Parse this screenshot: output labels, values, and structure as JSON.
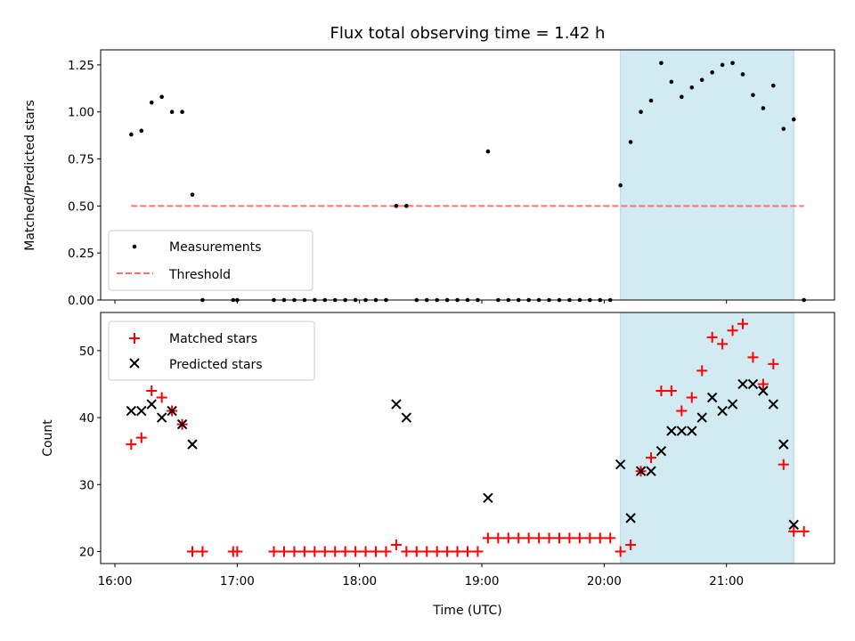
{
  "colors": {
    "measure": "#000000",
    "threshold": "#ff7070",
    "matched": "#ff0000",
    "predicted": "#000000",
    "shade": "#add8e6"
  },
  "chart_data": [
    {
      "type": "scatter",
      "title": "Flux total observing time = 1.42 h",
      "xlabel": "",
      "ylabel": "Matched/Predicted stars",
      "xlim": [
        "15:53",
        "21:53"
      ],
      "ylim": [
        0,
        1.33
      ],
      "yticks": [
        0,
        0.25,
        0.5,
        0.75,
        1.0,
        1.25
      ],
      "ytick_labels": [
        "0.00",
        "0.25",
        "0.50",
        "0.75",
        "1.00",
        "1.25"
      ],
      "shaded_span": [
        "20:08",
        "21:33"
      ],
      "legend": [
        "Measurements",
        "Threshold"
      ],
      "legend_position": "lower-left",
      "threshold": {
        "name": "Threshold",
        "y": 0.5,
        "x": [
          "16:08",
          "21:38"
        ]
      },
      "series": [
        {
          "name": "Measurements",
          "points": [
            [
              "16:08",
              0.88
            ],
            [
              "16:13",
              0.9
            ],
            [
              "16:18",
              1.05
            ],
            [
              "16:23",
              1.08
            ],
            [
              "16:28",
              1.0
            ],
            [
              "16:33",
              1.0
            ],
            [
              "16:38",
              0.56
            ],
            [
              "16:43",
              0.0
            ],
            [
              "16:58",
              0.0
            ],
            [
              "17:00",
              0.0
            ],
            [
              "17:18",
              0.0
            ],
            [
              "17:23",
              0.0
            ],
            [
              "17:28",
              0.0
            ],
            [
              "17:33",
              0.0
            ],
            [
              "17:38",
              0.0
            ],
            [
              "17:43",
              0.0
            ],
            [
              "17:48",
              0.0
            ],
            [
              "17:53",
              0.0
            ],
            [
              "17:58",
              0.0
            ],
            [
              "18:03",
              0.0
            ],
            [
              "18:08",
              0.0
            ],
            [
              "18:13",
              0.0
            ],
            [
              "18:18",
              0.5
            ],
            [
              "18:23",
              0.5
            ],
            [
              "18:28",
              0.0
            ],
            [
              "18:33",
              0.0
            ],
            [
              "18:38",
              0.0
            ],
            [
              "18:43",
              0.0
            ],
            [
              "18:48",
              0.0
            ],
            [
              "18:53",
              0.0
            ],
            [
              "18:58",
              0.0
            ],
            [
              "19:03",
              0.79
            ],
            [
              "19:08",
              0.0
            ],
            [
              "19:13",
              0.0
            ],
            [
              "19:18",
              0.0
            ],
            [
              "19:23",
              0.0
            ],
            [
              "19:28",
              0.0
            ],
            [
              "19:33",
              0.0
            ],
            [
              "19:38",
              0.0
            ],
            [
              "19:43",
              0.0
            ],
            [
              "19:48",
              0.0
            ],
            [
              "19:53",
              0.0
            ],
            [
              "19:58",
              0.0
            ],
            [
              "20:03",
              0.0
            ],
            [
              "20:08",
              0.61
            ],
            [
              "20:13",
              0.84
            ],
            [
              "20:18",
              1.0
            ],
            [
              "20:23",
              1.06
            ],
            [
              "20:28",
              1.26
            ],
            [
              "20:33",
              1.16
            ],
            [
              "20:38",
              1.08
            ],
            [
              "20:43",
              1.13
            ],
            [
              "20:48",
              1.17
            ],
            [
              "20:53",
              1.21
            ],
            [
              "20:58",
              1.25
            ],
            [
              "21:03",
              1.26
            ],
            [
              "21:08",
              1.2
            ],
            [
              "21:13",
              1.09
            ],
            [
              "21:18",
              1.02
            ],
            [
              "21:23",
              1.14
            ],
            [
              "21:28",
              0.91
            ],
            [
              "21:33",
              0.96
            ],
            [
              "21:38",
              0.0
            ]
          ]
        }
      ]
    },
    {
      "type": "scatter",
      "title": "",
      "xlabel": "Time (UTC)",
      "ylabel": "Count",
      "xlim": [
        "15:53",
        "21:53"
      ],
      "ylim": [
        18.2,
        55.7
      ],
      "yticks": [
        20,
        30,
        40,
        50
      ],
      "ytick_labels": [
        "20",
        "30",
        "40",
        "50"
      ],
      "xticks": [
        "16:00",
        "17:00",
        "18:00",
        "19:00",
        "20:00",
        "21:00"
      ],
      "xtick_labels": [
        "16:00",
        "17:00",
        "18:00",
        "19:00",
        "20:00",
        "21:00"
      ],
      "shaded_span": [
        "20:08",
        "21:33"
      ],
      "legend": [
        "Matched stars",
        "Predicted stars"
      ],
      "legend_position": "upper-left",
      "series": [
        {
          "name": "Matched stars",
          "points": [
            [
              "16:08",
              36
            ],
            [
              "16:13",
              37
            ],
            [
              "16:18",
              44
            ],
            [
              "16:23",
              43
            ],
            [
              "16:28",
              41
            ],
            [
              "16:33",
              39
            ],
            [
              "16:38",
              20
            ],
            [
              "16:43",
              20
            ],
            [
              "16:58",
              20
            ],
            [
              "17:00",
              20
            ],
            [
              "17:18",
              20
            ],
            [
              "17:23",
              20
            ],
            [
              "17:28",
              20
            ],
            [
              "17:33",
              20
            ],
            [
              "17:38",
              20
            ],
            [
              "17:43",
              20
            ],
            [
              "17:48",
              20
            ],
            [
              "17:53",
              20
            ],
            [
              "17:58",
              20
            ],
            [
              "18:03",
              20
            ],
            [
              "18:08",
              20
            ],
            [
              "18:13",
              20
            ],
            [
              "18:18",
              21
            ],
            [
              "18:23",
              20
            ],
            [
              "18:28",
              20
            ],
            [
              "18:33",
              20
            ],
            [
              "18:38",
              20
            ],
            [
              "18:43",
              20
            ],
            [
              "18:48",
              20
            ],
            [
              "18:53",
              20
            ],
            [
              "18:58",
              20
            ],
            [
              "19:03",
              22
            ],
            [
              "19:08",
              22
            ],
            [
              "19:13",
              22
            ],
            [
              "19:18",
              22
            ],
            [
              "19:23",
              22
            ],
            [
              "19:28",
              22
            ],
            [
              "19:33",
              22
            ],
            [
              "19:38",
              22
            ],
            [
              "19:43",
              22
            ],
            [
              "19:48",
              22
            ],
            [
              "19:53",
              22
            ],
            [
              "19:58",
              22
            ],
            [
              "20:03",
              22
            ],
            [
              "20:08",
              20
            ],
            [
              "20:13",
              21
            ],
            [
              "20:18",
              32
            ],
            [
              "20:23",
              34
            ],
            [
              "20:28",
              44
            ],
            [
              "20:33",
              44
            ],
            [
              "20:38",
              41
            ],
            [
              "20:43",
              43
            ],
            [
              "20:48",
              47
            ],
            [
              "20:53",
              52
            ],
            [
              "20:58",
              51
            ],
            [
              "21:03",
              53
            ],
            [
              "21:08",
              54
            ],
            [
              "21:13",
              49
            ],
            [
              "21:18",
              45
            ],
            [
              "21:23",
              48
            ],
            [
              "21:28",
              33
            ],
            [
              "21:33",
              23
            ],
            [
              "21:38",
              23
            ]
          ]
        },
        {
          "name": "Predicted stars",
          "points": [
            [
              "16:08",
              41
            ],
            [
              "16:13",
              41
            ],
            [
              "16:18",
              42
            ],
            [
              "16:23",
              40
            ],
            [
              "16:28",
              41
            ],
            [
              "16:33",
              39
            ],
            [
              "16:38",
              36
            ],
            [
              "18:18",
              42
            ],
            [
              "18:23",
              40
            ],
            [
              "19:03",
              28
            ],
            [
              "20:08",
              33
            ],
            [
              "20:13",
              25
            ],
            [
              "20:18",
              32
            ],
            [
              "20:23",
              32
            ],
            [
              "20:28",
              35
            ],
            [
              "20:33",
              38
            ],
            [
              "20:38",
              38
            ],
            [
              "20:43",
              38
            ],
            [
              "20:48",
              40
            ],
            [
              "20:53",
              43
            ],
            [
              "20:58",
              41
            ],
            [
              "21:03",
              42
            ],
            [
              "21:08",
              45
            ],
            [
              "21:13",
              45
            ],
            [
              "21:18",
              44
            ],
            [
              "21:23",
              42
            ],
            [
              "21:28",
              36
            ],
            [
              "21:33",
              24
            ]
          ]
        }
      ]
    }
  ]
}
